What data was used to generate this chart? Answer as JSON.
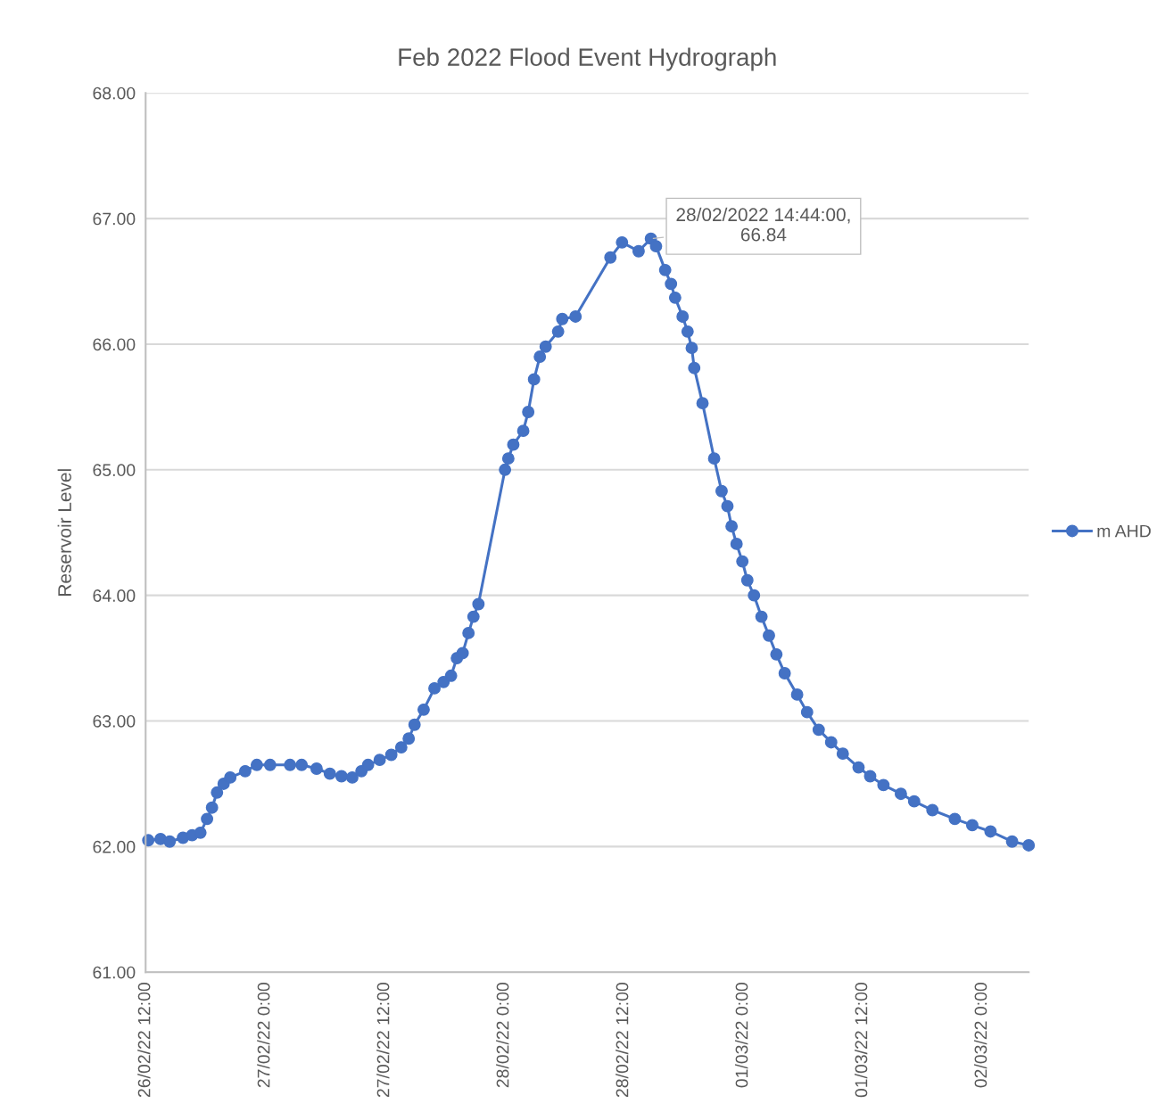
{
  "chart_data": {
    "type": "line",
    "title": "Feb 2022 Flood Event Hydrograph",
    "ylabel": "Reservoir Level",
    "x": [
      "2022-02-26T12:16",
      "2022-02-26T13:30",
      "2022-02-26T14:25",
      "2022-02-26T15:45",
      "2022-02-26T16:40",
      "2022-02-26T17:30",
      "2022-02-26T18:10",
      "2022-02-26T18:40",
      "2022-02-26T19:10",
      "2022-02-26T19:50",
      "2022-02-26T20:30",
      "2022-02-26T22:00",
      "2022-02-26T23:10",
      "2022-02-27T00:30",
      "2022-02-27T02:30",
      "2022-02-27T03:40",
      "2022-02-27T05:10",
      "2022-02-27T06:30",
      "2022-02-27T07:40",
      "2022-02-27T08:45",
      "2022-02-27T09:40",
      "2022-02-27T10:20",
      "2022-02-27T11:30",
      "2022-02-27T12:40",
      "2022-02-27T13:40",
      "2022-02-27T14:25",
      "2022-02-27T15:00",
      "2022-02-27T15:55",
      "2022-02-27T17:00",
      "2022-02-27T17:55",
      "2022-02-27T18:40",
      "2022-02-27T19:15",
      "2022-02-27T19:50",
      "2022-02-27T20:25",
      "2022-02-27T20:55",
      "2022-02-27T21:25",
      "2022-02-28T00:05",
      "2022-02-28T00:25",
      "2022-02-28T00:55",
      "2022-02-28T01:55",
      "2022-02-28T02:25",
      "2022-02-28T03:00",
      "2022-02-28T03:35",
      "2022-02-28T04:10",
      "2022-02-28T05:25",
      "2022-02-28T05:50",
      "2022-02-28T07:10",
      "2022-02-28T10:40",
      "2022-02-28T11:50",
      "2022-02-28T13:30",
      "2022-02-28T14:44",
      "2022-02-28T15:15",
      "2022-02-28T16:10",
      "2022-02-28T16:45",
      "2022-02-28T17:10",
      "2022-02-28T17:55",
      "2022-02-28T18:25",
      "2022-02-28T18:50",
      "2022-02-28T19:05",
      "2022-02-28T19:55",
      "2022-02-28T21:05",
      "2022-02-28T21:50",
      "2022-02-28T22:25",
      "2022-02-28T22:50",
      "2022-02-28T23:20",
      "2022-02-28T23:55",
      "2022-03-01T00:25",
      "2022-03-01T01:05",
      "2022-03-01T01:50",
      "2022-03-01T02:35",
      "2022-03-01T03:20",
      "2022-03-01T04:10",
      "2022-03-01T05:25",
      "2022-03-01T06:25",
      "2022-03-01T07:35",
      "2022-03-01T08:50",
      "2022-03-01T10:00",
      "2022-03-01T11:35",
      "2022-03-01T12:45",
      "2022-03-01T14:05",
      "2022-03-01T15:50",
      "2022-03-01T17:10",
      "2022-03-01T19:00",
      "2022-03-01T21:15",
      "2022-03-01T23:00",
      "2022-03-02T00:50",
      "2022-03-02T03:00",
      "2022-03-02T04:40"
    ],
    "series": [
      {
        "name": "m AHD",
        "color": "#4472c4",
        "values": [
          62.05,
          62.06,
          62.04,
          62.07,
          62.09,
          62.11,
          62.22,
          62.31,
          62.43,
          62.5,
          62.55,
          62.6,
          62.65,
          62.65,
          62.65,
          62.65,
          62.62,
          62.58,
          62.56,
          62.55,
          62.6,
          62.65,
          62.69,
          62.73,
          62.79,
          62.86,
          62.97,
          63.09,
          63.26,
          63.31,
          63.36,
          63.5,
          63.54,
          63.7,
          63.83,
          63.93,
          65.0,
          65.09,
          65.2,
          65.31,
          65.46,
          65.72,
          65.9,
          65.98,
          66.1,
          66.2,
          66.22,
          66.69,
          66.81,
          66.74,
          66.84,
          66.78,
          66.59,
          66.48,
          66.37,
          66.22,
          66.1,
          65.97,
          65.81,
          65.53,
          65.09,
          64.83,
          64.71,
          64.55,
          64.41,
          64.27,
          64.12,
          64.0,
          63.83,
          63.68,
          63.53,
          63.38,
          63.21,
          63.07,
          62.93,
          62.83,
          62.74,
          62.63,
          62.56,
          62.49,
          62.42,
          62.36,
          62.29,
          62.22,
          62.17,
          62.12,
          62.04,
          62.01
        ]
      }
    ],
    "xlim": [
      "2022-02-26T12:00",
      "2022-03-02T04:40"
    ],
    "xticks": [
      {
        "value": "2022-02-26T12:00",
        "label": "26/02/22 12:00"
      },
      {
        "value": "2022-02-27T00:00",
        "label": "27/02/22 0:00"
      },
      {
        "value": "2022-02-27T12:00",
        "label": "27/02/22 12:00"
      },
      {
        "value": "2022-02-28T00:00",
        "label": "28/02/22 0:00"
      },
      {
        "value": "2022-02-28T12:00",
        "label": "28/02/22 12:00"
      },
      {
        "value": "2022-03-01T00:00",
        "label": "01/03/22 0:00"
      },
      {
        "value": "2022-03-01T12:00",
        "label": "01/03/22 12:00"
      },
      {
        "value": "2022-03-02T00:00",
        "label": "02/03/22 0:00"
      }
    ],
    "ylim": [
      61,
      68
    ],
    "yticks": [
      {
        "value": 61,
        "label": "61.00"
      },
      {
        "value": 62,
        "label": "62.00"
      },
      {
        "value": 63,
        "label": "63.00"
      },
      {
        "value": 64,
        "label": "64.00"
      },
      {
        "value": 65,
        "label": "65.00"
      },
      {
        "value": 66,
        "label": "66.00"
      },
      {
        "value": 67,
        "label": "67.00"
      },
      {
        "value": 68,
        "label": "68.00"
      }
    ],
    "annotations": [
      {
        "text": "28/02/2022 14:44:00,\n66.84",
        "x": "2022-02-28T14:44",
        "y": 66.84
      }
    ],
    "grid": "y",
    "legend": "right",
    "marker": "circle",
    "line_style": "solid"
  }
}
